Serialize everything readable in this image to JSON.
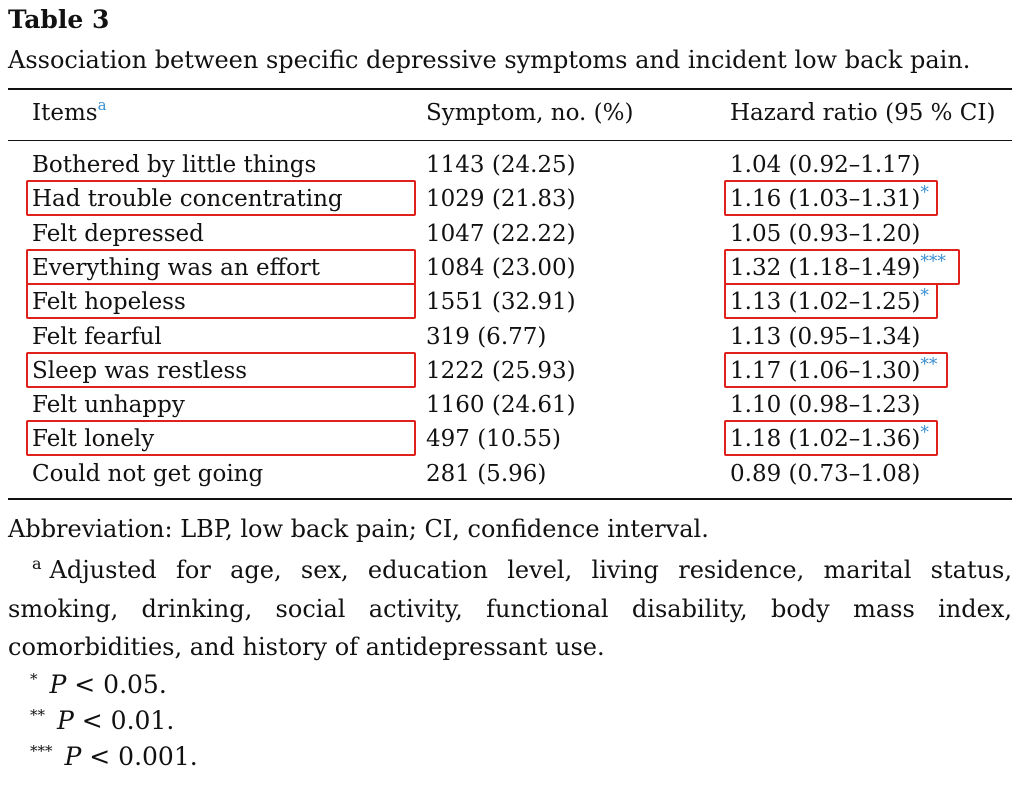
{
  "caption": {
    "label": "Table 3",
    "title": "Association between specific depressive symptoms and incident low back pain."
  },
  "header": {
    "items": "Items",
    "items_sup": "a",
    "symptom": "Symptom, no. (%)",
    "hazard": "Hazard ratio (95 % CI)"
  },
  "rows": [
    {
      "item": "Bothered by little things",
      "symptom": "1143 (24.25)",
      "hr": "1.04 (0.92–1.17)",
      "sig": "",
      "highlighted": false
    },
    {
      "item": "Had trouble concentrating",
      "symptom": "1029 (21.83)",
      "hr": "1.16 (1.03–1.31)",
      "sig": "*",
      "highlighted": true
    },
    {
      "item": "Felt depressed",
      "symptom": "1047 (22.22)",
      "hr": "1.05 (0.93–1.20)",
      "sig": "",
      "highlighted": false
    },
    {
      "item": "Everything was an effort",
      "symptom": "1084 (23.00)",
      "hr": "1.32 (1.18–1.49)",
      "sig": "***",
      "highlighted": true
    },
    {
      "item": "Felt hopeless",
      "symptom": "1551 (32.91)",
      "hr": "1.13 (1.02–1.25)",
      "sig": "*",
      "highlighted": true
    },
    {
      "item": "Felt fearful",
      "symptom": "319 (6.77)",
      "hr": "1.13 (0.95–1.34)",
      "sig": "",
      "highlighted": false
    },
    {
      "item": "Sleep was restless",
      "symptom": "1222 (25.93)",
      "hr": "1.17 (1.06–1.30)",
      "sig": "**",
      "highlighted": true
    },
    {
      "item": "Felt unhappy",
      "symptom": "1160 (24.61)",
      "hr": "1.10 (0.98–1.23)",
      "sig": "",
      "highlighted": false
    },
    {
      "item": "Felt lonely",
      "symptom": "497 (10.55)",
      "hr": "1.18 (1.02–1.36)",
      "sig": "*",
      "highlighted": true
    },
    {
      "item": "Could not get going",
      "symptom": "281 (5.96)",
      "hr": "0.89 (0.73–1.08)",
      "sig": "",
      "highlighted": false
    }
  ],
  "footnotes": {
    "abbreviation": "Abbreviation: LBP, low back pain; CI, confidence interval.",
    "a_mark": "a",
    "a_text": "Adjusted for age, sex, education level, living residence, marital status, smoking, drinking, social activity, functional disability, body mass index, comorbidities, and history of antidepressant use.",
    "p_notes": [
      {
        "stars": "*",
        "p": "P",
        "rest": "< 0.05."
      },
      {
        "stars": "**",
        "p": "P",
        "rest": "< 0.01."
      },
      {
        "stars": "***",
        "p": "P",
        "rest": "< 0.001."
      }
    ]
  },
  "colors": {
    "highlight_box": "#e0201b",
    "significance_link": "#3a8fd0",
    "text": "#111111"
  }
}
